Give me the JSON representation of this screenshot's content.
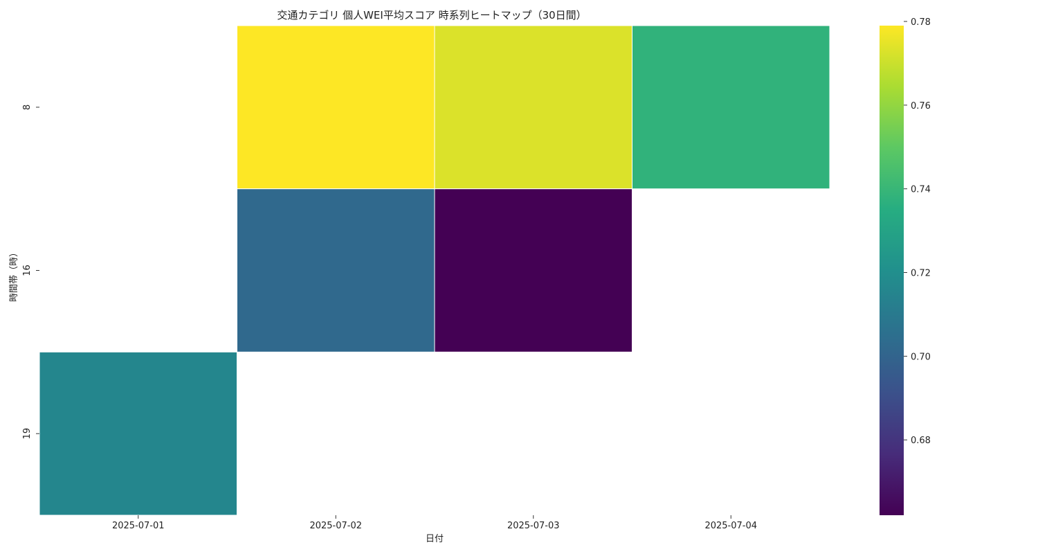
{
  "chart_data": {
    "type": "heatmap",
    "title": "交通カテゴリ 個人WEI平均スコア 時系列ヒートマップ（30日間）",
    "xlabel": "日付",
    "ylabel": "時間帯（時）",
    "x_categories": [
      "2025-07-01",
      "2025-07-02",
      "2025-07-03",
      "2025-07-04"
    ],
    "y_categories": [
      "8",
      "16",
      "19"
    ],
    "values": [
      [
        null,
        0.779,
        0.773,
        0.738
      ],
      [
        null,
        0.702,
        0.662,
        null
      ],
      [
        0.716,
        null,
        null,
        null
      ]
    ],
    "colorbar": {
      "colormap": "viridis",
      "range": [
        0.662,
        0.779
      ],
      "ticks": [
        "0.68",
        "0.70",
        "0.72",
        "0.74",
        "0.76",
        "0.78"
      ],
      "tick_values": [
        0.68,
        0.7,
        0.72,
        0.74,
        0.76,
        0.78
      ]
    },
    "grid": false,
    "legend": "colorbar-right"
  }
}
